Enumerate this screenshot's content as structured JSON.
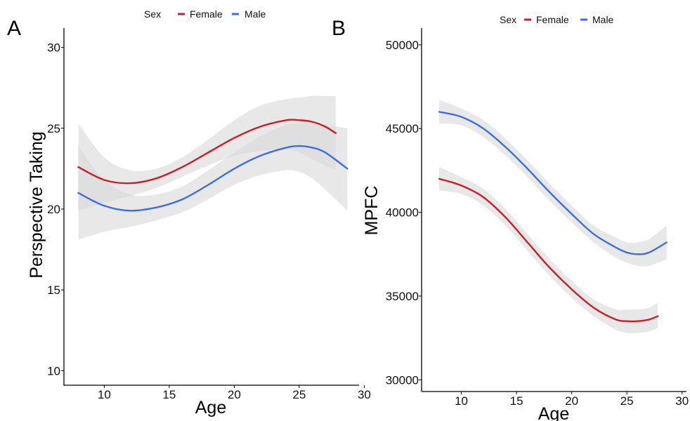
{
  "chart_data": [
    {
      "panel": "A",
      "type": "line",
      "xlabel": "Age",
      "ylabel": "Perspective Taking",
      "xlim": [
        6.9,
        29.6
      ],
      "ylim": [
        9.1,
        31.2
      ],
      "xticks": [
        "10",
        "15",
        "20",
        "25",
        "30"
      ],
      "yticks": [
        "10",
        "15",
        "20",
        "25",
        "30"
      ],
      "legend": {
        "title": "Sex",
        "position": "top",
        "entries": [
          "Female",
          "Male"
        ]
      },
      "series": [
        {
          "name": "Female",
          "color": "#cc1f25",
          "x": [
            8,
            10,
            12,
            14,
            16,
            18,
            20,
            22,
            24,
            25,
            26,
            27,
            27.8
          ],
          "y": [
            22.6,
            21.8,
            21.6,
            21.9,
            22.6,
            23.5,
            24.4,
            25.1,
            25.5,
            25.5,
            25.4,
            25.1,
            24.7
          ],
          "ci_lower": [
            19.9,
            20.4,
            20.8,
            21.3,
            22.0,
            22.7,
            23.3,
            23.6,
            23.7,
            23.5,
            23.1,
            22.7,
            22.4
          ],
          "ci_upper": [
            25.3,
            23.2,
            22.4,
            22.5,
            23.2,
            24.3,
            25.5,
            26.4,
            26.8,
            26.9,
            27.0,
            27.0,
            27.0
          ]
        },
        {
          "name": "Male",
          "color": "#3c6fe0",
          "x": [
            8,
            10,
            12,
            14,
            16,
            18,
            20,
            22,
            24,
            25,
            26,
            27,
            28.7
          ],
          "y": [
            21.0,
            20.2,
            19.9,
            20.1,
            20.6,
            21.5,
            22.5,
            23.3,
            23.8,
            23.9,
            23.8,
            23.5,
            22.5
          ],
          "ci_lower": [
            18.1,
            18.6,
            18.9,
            19.3,
            19.8,
            20.6,
            21.5,
            22.1,
            22.4,
            22.3,
            21.9,
            21.2,
            19.9
          ],
          "ci_upper": [
            23.9,
            21.8,
            20.9,
            20.9,
            21.4,
            22.4,
            23.5,
            24.5,
            25.2,
            25.3,
            25.3,
            25.2,
            25.0
          ]
        }
      ]
    },
    {
      "panel": "B",
      "type": "line",
      "xlabel": "Age",
      "ylabel": "MPFC",
      "xlim": [
        6.4,
        30.4
      ],
      "ylim": [
        29300,
        51000
      ],
      "xticks": [
        "10",
        "15",
        "20",
        "25",
        "30"
      ],
      "yticks": [
        "30000",
        "35000",
        "40000",
        "45000",
        "50000"
      ],
      "legend": {
        "title": "Sex",
        "position": "top",
        "entries": [
          "Female",
          "Male"
        ]
      },
      "series": [
        {
          "name": "Female",
          "color": "#cc1f25",
          "x": [
            8,
            10,
            12,
            14,
            16,
            18,
            20,
            22,
            24,
            25,
            26,
            27,
            27.8
          ],
          "y": [
            42000,
            41600,
            40900,
            39700,
            38200,
            36700,
            35400,
            34300,
            33600,
            33500,
            33500,
            33600,
            33800
          ],
          "ci_lower": [
            41300,
            41100,
            40400,
            39200,
            37700,
            36200,
            34900,
            33800,
            33000,
            32800,
            32800,
            32900,
            33100
          ],
          "ci_upper": [
            42700,
            42100,
            41400,
            40200,
            38700,
            37200,
            35900,
            34800,
            34200,
            34200,
            34200,
            34300,
            34600
          ]
        },
        {
          "name": "Male",
          "color": "#3c6fe0",
          "x": [
            8,
            10,
            12,
            14,
            16,
            18,
            20,
            22,
            24,
            25,
            26,
            27,
            28.6
          ],
          "y": [
            46000,
            45700,
            45000,
            43900,
            42600,
            41200,
            39900,
            38700,
            37900,
            37600,
            37500,
            37600,
            38200
          ],
          "ci_lower": [
            45300,
            45200,
            44500,
            43400,
            42100,
            40700,
            39400,
            38200,
            37300,
            37000,
            36800,
            36800,
            37200
          ],
          "ci_upper": [
            46700,
            46200,
            45500,
            44400,
            43100,
            41700,
            40400,
            39200,
            38500,
            38200,
            38200,
            38400,
            39200
          ]
        }
      ]
    }
  ]
}
